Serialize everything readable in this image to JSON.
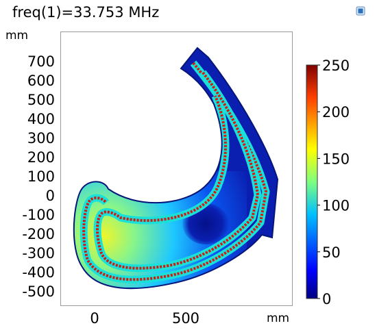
{
  "chart_data": {
    "type": "heatmap",
    "title": "freq(1)=33.753 MHz",
    "xlabel": "mm",
    "ylabel": "mm",
    "x_ticks": [
      0,
      500
    ],
    "y_ticks": [
      700,
      600,
      500,
      400,
      300,
      200,
      100,
      0,
      -100,
      -200,
      -300,
      -400,
      -500
    ],
    "xlim": [
      -100,
      930
    ],
    "ylim": [
      -560,
      820
    ],
    "colorbar": {
      "min": 0,
      "max": 250,
      "ticks": [
        250,
        200,
        150,
        100,
        50,
        0
      ],
      "colormap": [
        "#00007f",
        "#0000ff",
        "#00bfff",
        "#7fff7f",
        "#ffff00",
        "#ff4000",
        "#7f0000"
      ]
    },
    "background_field_color": "#001a9e"
  },
  "toolbar": {
    "icon": "image-icon"
  }
}
